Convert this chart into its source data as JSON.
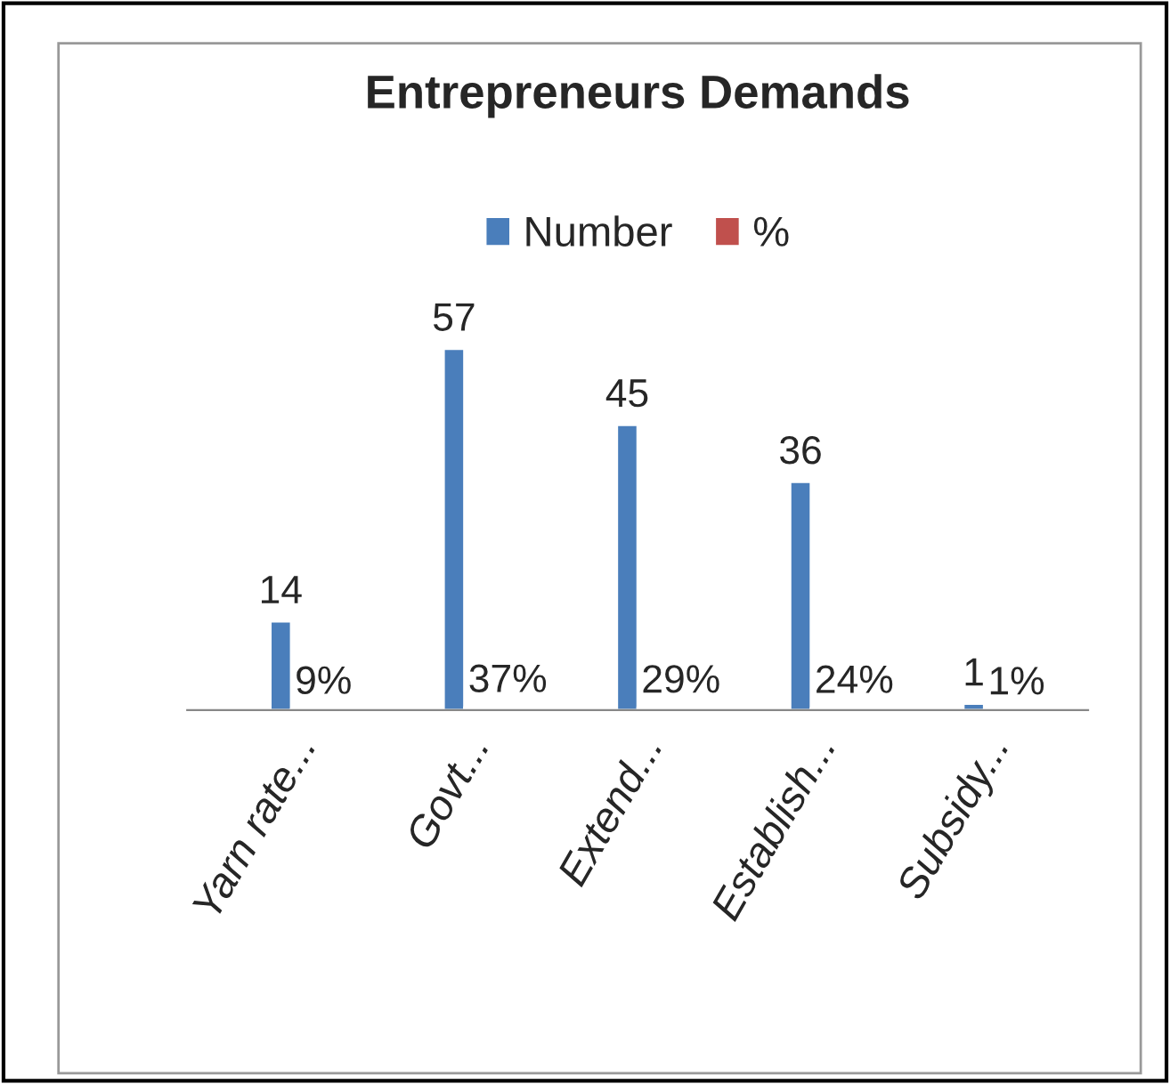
{
  "chart_data": {
    "type": "bar",
    "title": "Entrepreneurs Demands",
    "categories": [
      "Yarn rate...",
      "Govt...",
      "Extend...",
      "Establish...",
      "Subsidy..."
    ],
    "series": [
      {
        "name": "Number",
        "color": "#4a7ebb",
        "values": [
          14,
          57,
          45,
          36,
          1
        ],
        "value_labels": [
          "14",
          "57",
          "45",
          "36",
          "1"
        ]
      },
      {
        "name": "%",
        "color": "#c0504d",
        "values": [
          0.09,
          0.37,
          0.29,
          0.24,
          0.01
        ],
        "value_labels": [
          "9%",
          "37%",
          "29%",
          "24%",
          "1%"
        ]
      }
    ],
    "legend": "top",
    "grid": false
  }
}
